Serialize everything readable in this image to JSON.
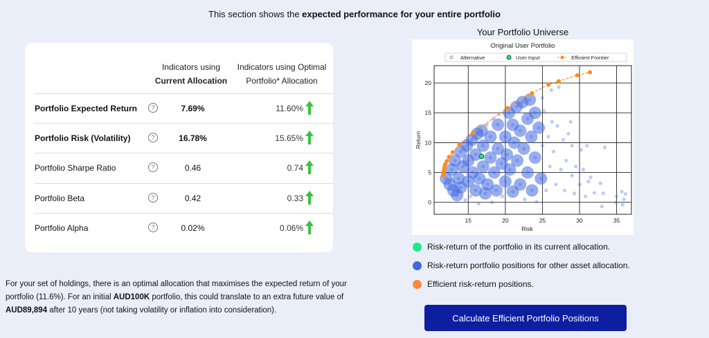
{
  "intro": {
    "prefix": "This section shows the ",
    "bold": "expected performance for your entire portfolio"
  },
  "table": {
    "col_current": [
      "Indicators using",
      "Current Allocation"
    ],
    "col_optimal": [
      "Indicators using Optimal",
      "Portfolio* Allocation"
    ],
    "rows": [
      {
        "label": "Portfolio Expected Return",
        "current": "7.69%",
        "optimal": "11.60%",
        "bold": true
      },
      {
        "label": "Portfolio Risk (Volatility)",
        "current": "16.78%",
        "optimal": "15.65%",
        "bold": true
      },
      {
        "label": "Portfolio Sharpe Ratio",
        "current": "0.46",
        "optimal": "0.74",
        "bold": false
      },
      {
        "label": "Portfolio Beta",
        "current": "0.42",
        "optimal": "0.33",
        "bold": false
      },
      {
        "label": "Portfolio Alpha",
        "current": "0.02%",
        "optimal": "0.06%",
        "bold": false
      }
    ],
    "help_icon": "question-circle-icon",
    "arrow_icon": "arrow-up-icon",
    "arrow_color": "#3cc23c"
  },
  "paragraph": {
    "t1": "For your set of holdings, there is an optimal allocation that maximises the expected return of your portfolio (11.6%). For an initial ",
    "b1": "AUD100K",
    "t2": " portfolio, this could translate to an extra future value of ",
    "b2": "AUD89,894",
    "t3": " after 10 years (not taking volatility or inflation into consideration)."
  },
  "universe_title": "Your Portfolio Universe",
  "legend_items": [
    {
      "text": "Risk-return of the portfolio in its current allocation.",
      "color": "#1de88a"
    },
    {
      "text": "Risk-return portfolio positions for other asset allocation.",
      "color": "#4169e1"
    },
    {
      "text": "Efficient risk-return positions.",
      "color": "#f98a3c"
    }
  ],
  "button": "Calculate Efficient Portfolio Positions",
  "chart_data": {
    "type": "scatter",
    "title": "Original User Portfolio",
    "xlabel": "Risk",
    "ylabel": "Return",
    "xlim": [
      10.4,
      37
    ],
    "ylim": [
      -2,
      22.9
    ],
    "grid": true,
    "legend_placement": "top",
    "xticks": [
      15,
      20,
      25,
      30,
      35
    ],
    "yticks": [
      0,
      5,
      10,
      15,
      20
    ],
    "series": [
      {
        "name": "Alternative",
        "color": "#4169e1",
        "points": [
          [
            12,
            4
          ],
          [
            12.5,
            3
          ],
          [
            12.8,
            5.5
          ],
          [
            13,
            2
          ],
          [
            13.2,
            7
          ],
          [
            13.5,
            1.2
          ],
          [
            13.7,
            4
          ],
          [
            14,
            8.5
          ],
          [
            14,
            2.5
          ],
          [
            14.3,
            6
          ],
          [
            14.6,
            0.4
          ],
          [
            14.8,
            9.5
          ],
          [
            15,
            3.5
          ],
          [
            15,
            7
          ],
          [
            15.3,
            1
          ],
          [
            15.5,
            10.5
          ],
          [
            15.6,
            5
          ],
          [
            16,
            8
          ],
          [
            16,
            2
          ],
          [
            16.2,
            11.5
          ],
          [
            16.4,
            -0.2
          ],
          [
            16.5,
            4
          ],
          [
            16.8,
            12
          ],
          [
            17,
            6
          ],
          [
            17,
            9.5
          ],
          [
            17.3,
            1.5
          ],
          [
            17.5,
            13
          ],
          [
            17.6,
            3
          ],
          [
            18,
            7.5
          ],
          [
            18,
            11
          ],
          [
            18.2,
            0
          ],
          [
            18.4,
            14
          ],
          [
            18.5,
            5
          ],
          [
            18.8,
            2
          ],
          [
            19,
            9
          ],
          [
            19,
            13
          ],
          [
            19.2,
            14.8
          ],
          [
            19.5,
            6.5
          ],
          [
            19.6,
            1
          ],
          [
            20,
            11
          ],
          [
            20,
            3.5
          ],
          [
            20.2,
            8
          ],
          [
            20.5,
            15
          ],
          [
            20.6,
            5.5
          ],
          [
            21,
            13
          ],
          [
            21,
            1.8
          ],
          [
            21.2,
            10
          ],
          [
            21.5,
            16
          ],
          [
            21.6,
            7
          ],
          [
            22,
            3
          ],
          [
            22,
            12
          ],
          [
            22.3,
            16.8
          ],
          [
            22.5,
            9
          ],
          [
            22.6,
            0.5
          ],
          [
            23,
            14
          ],
          [
            23,
            5
          ],
          [
            23.3,
            17.2
          ],
          [
            23.5,
            11
          ],
          [
            23.6,
            2
          ],
          [
            24,
            15
          ],
          [
            24,
            7.5
          ],
          [
            24.2,
            0.1
          ],
          [
            24.5,
            12.5
          ],
          [
            24.8,
            4
          ],
          [
            25,
            9.5
          ],
          [
            25,
            17.5
          ],
          [
            25.2,
            15.3
          ],
          [
            25.5,
            2
          ],
          [
            25.8,
            11
          ],
          [
            26,
            6
          ],
          [
            26.2,
            18.8
          ],
          [
            26.3,
            13.5
          ],
          [
            26.5,
            8.5
          ],
          [
            26.8,
            3
          ],
          [
            27,
            12.8
          ],
          [
            27.2,
            19.3
          ],
          [
            27.5,
            5.5
          ],
          [
            27.8,
            10.5
          ],
          [
            28,
            2
          ],
          [
            28.2,
            7
          ],
          [
            28.5,
            11.5
          ],
          [
            28.8,
            13.5
          ],
          [
            29,
            4.5
          ],
          [
            29,
            9.5
          ],
          [
            29.3,
            1.5
          ],
          [
            29.5,
            6
          ],
          [
            30,
            3
          ],
          [
            30.2,
            8.8
          ],
          [
            30.5,
            5.5
          ],
          [
            30.8,
            1
          ],
          [
            31,
            9.5
          ],
          [
            31.2,
            3.5
          ],
          [
            31.5,
            4.2
          ],
          [
            32,
            1.6
          ],
          [
            32.8,
            3.2
          ],
          [
            33,
            -0.7
          ],
          [
            33.2,
            1.5
          ],
          [
            33.4,
            9.2
          ],
          [
            34.9,
            0
          ],
          [
            35,
            1
          ],
          [
            35.7,
            1.8
          ],
          [
            35.8,
            -0.4
          ],
          [
            36,
            0.5
          ],
          [
            36.2,
            1.4
          ]
        ]
      },
      {
        "name": "User Input",
        "color": "#1de88a",
        "points": [
          [
            16.78,
            7.69
          ]
        ]
      },
      {
        "name": "Efficient Frontier",
        "color": "#ff8c1a",
        "points": [
          [
            11.6,
            4.5
          ],
          [
            11.65,
            4.8
          ],
          [
            11.7,
            5.2
          ],
          [
            11.75,
            5.6
          ],
          [
            11.8,
            6.0
          ],
          [
            11.9,
            6.4
          ],
          [
            12.1,
            6.9
          ],
          [
            12.4,
            7.6
          ],
          [
            12.9,
            8.4
          ],
          [
            13.8,
            9.7
          ],
          [
            15.6,
            11.6
          ],
          [
            20.3,
            15.8
          ],
          [
            23.6,
            18.3
          ],
          [
            25.8,
            19.7
          ],
          [
            27.2,
            20.3
          ],
          [
            29.7,
            21.3
          ],
          [
            31.4,
            21.8
          ]
        ]
      }
    ]
  }
}
